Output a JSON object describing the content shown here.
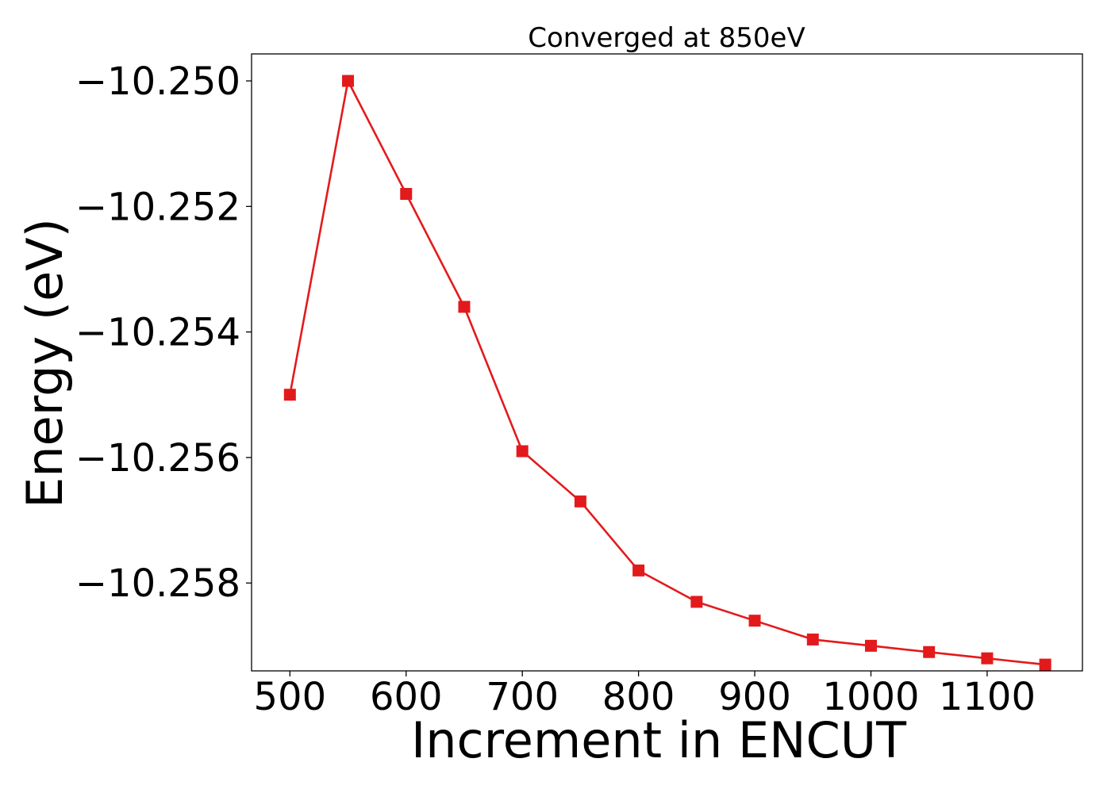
{
  "chart_data": {
    "type": "line",
    "title": "Converged at 850eV",
    "xlabel": "Increment in ENCUT",
    "ylabel": "Energy (eV)",
    "x": [
      500,
      550,
      600,
      650,
      700,
      750,
      800,
      850,
      900,
      950,
      1000,
      1050,
      1100,
      1150
    ],
    "series": [
      {
        "values": [
          -10.255,
          -10.25,
          -10.2518,
          -10.2536,
          -10.2559,
          -10.2567,
          -10.2578,
          -10.2583,
          -10.2586,
          -10.2589,
          -10.259,
          -10.2591,
          -10.2592,
          -10.2593
        ],
        "color": "#e31a1c",
        "marker": "square"
      }
    ],
    "xlim": [
      467,
      1182
    ],
    "ylim": [
      -10.2594,
      -10.24957
    ],
    "xticks": [
      500,
      600,
      700,
      800,
      900,
      1000,
      1100
    ],
    "xtick_labels": [
      "500",
      "600",
      "700",
      "800",
      "900",
      "1000",
      "1100"
    ],
    "yticks": [
      -10.25,
      -10.252,
      -10.254,
      -10.256,
      -10.258
    ],
    "ytick_labels": [
      "−10.250",
      "−10.252",
      "−10.254",
      "−10.256",
      "−10.258"
    ],
    "grid": false,
    "legend": "none"
  }
}
